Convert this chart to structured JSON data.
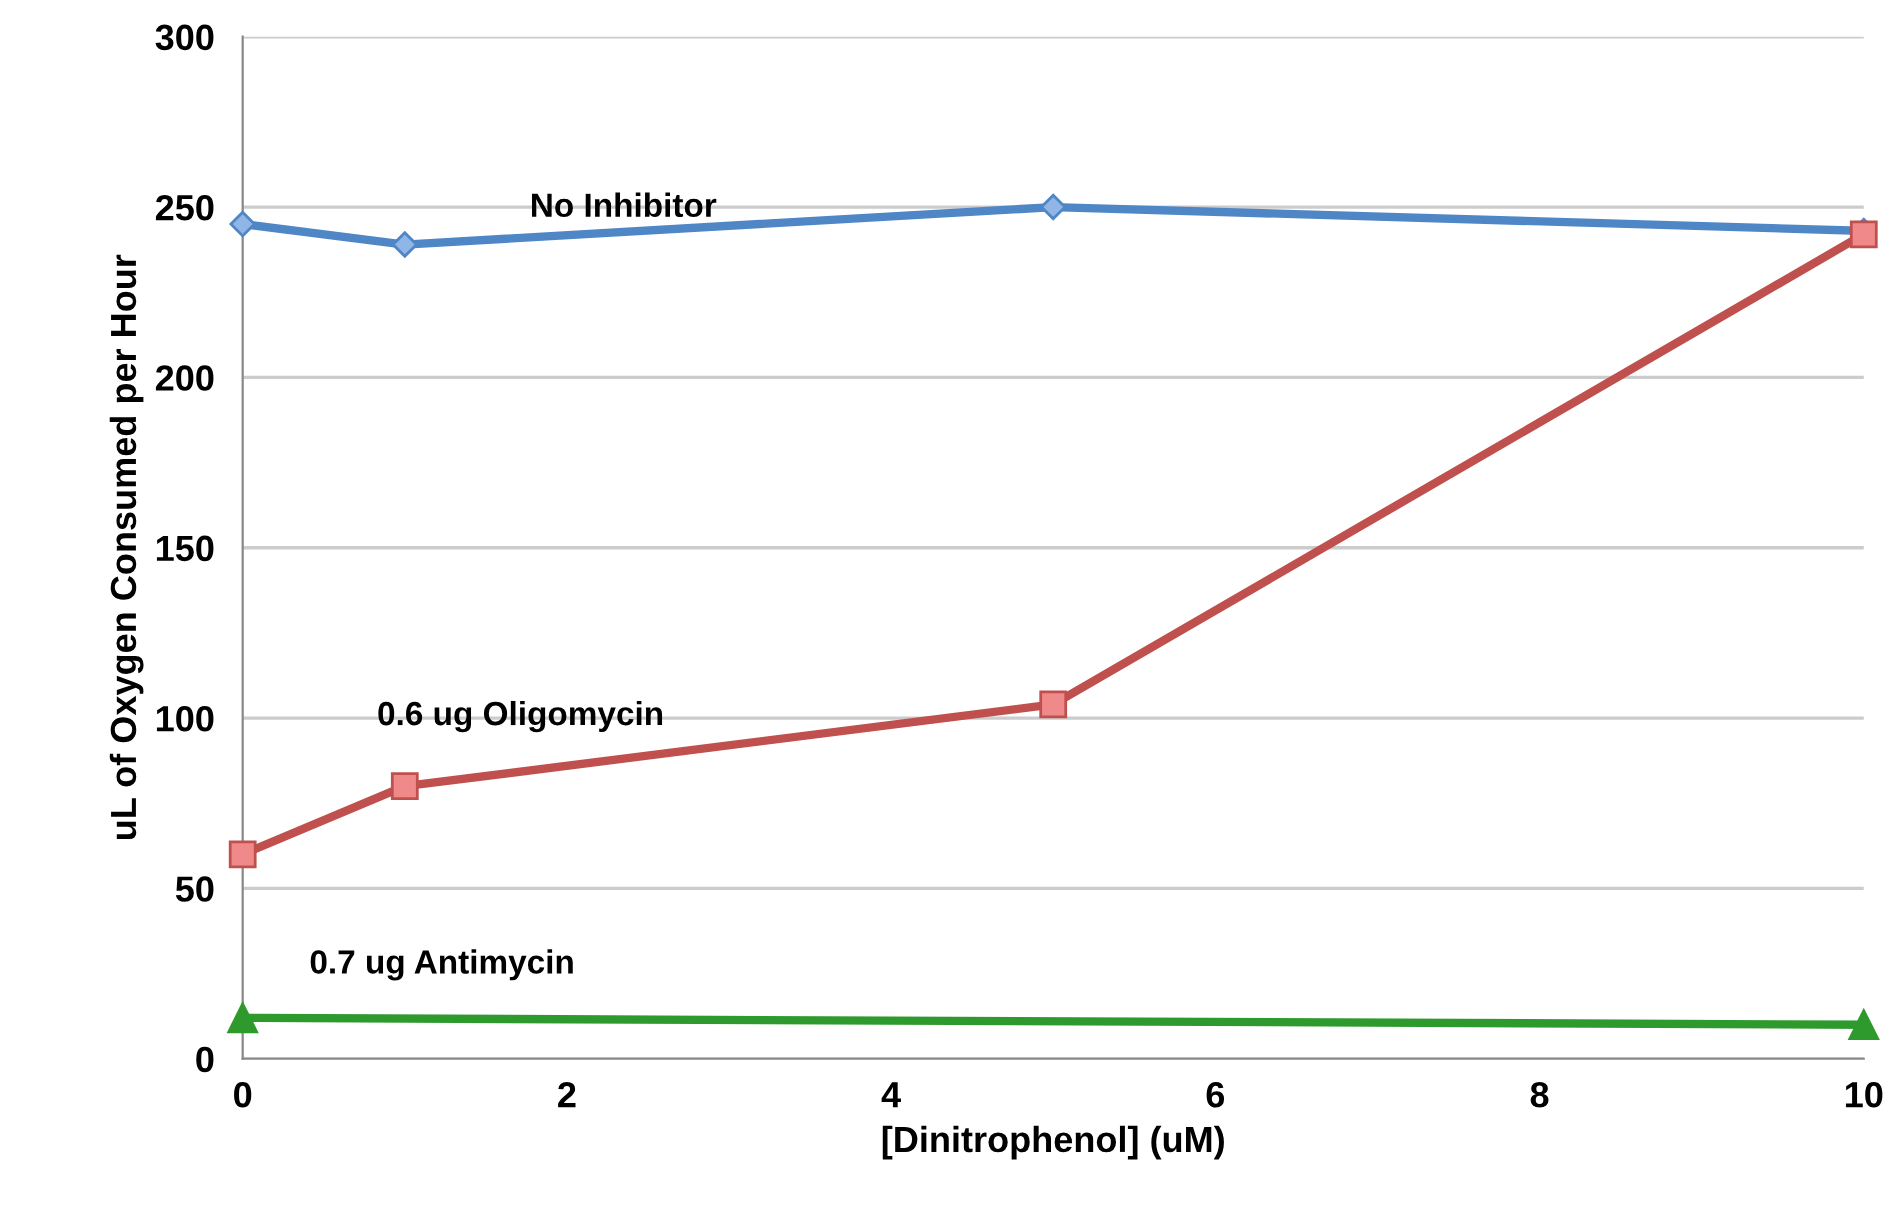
{
  "chart_data": {
    "type": "line",
    "xlabel": "[Dinitrophenol] (uM)",
    "ylabel": "uL of Oxygen Consumed per Hour",
    "xlim": [
      0,
      10
    ],
    "xticks": [
      0,
      2,
      4,
      6,
      8,
      10
    ],
    "ylim": [
      0,
      300
    ],
    "yticks": [
      0,
      50,
      100,
      150,
      200,
      250,
      300
    ],
    "grid": "y",
    "legend": false,
    "series": [
      {
        "name": "No Inhibitor",
        "color": "#4f86c6",
        "marker": "diamond",
        "x": [
          0,
          1,
          5,
          10
        ],
        "values": [
          245,
          239,
          250,
          243
        ]
      },
      {
        "name": "0.6 ug Oligomycin",
        "color": "#c0504d",
        "marker": "square",
        "x": [
          0,
          1,
          5,
          10
        ],
        "values": [
          60,
          80,
          104,
          242
        ]
      },
      {
        "name": "0.7 ug Antimycin",
        "color": "#2e9a2e",
        "marker": "triangle",
        "x": [
          0,
          10
        ],
        "values": [
          12,
          10
        ]
      }
    ]
  }
}
